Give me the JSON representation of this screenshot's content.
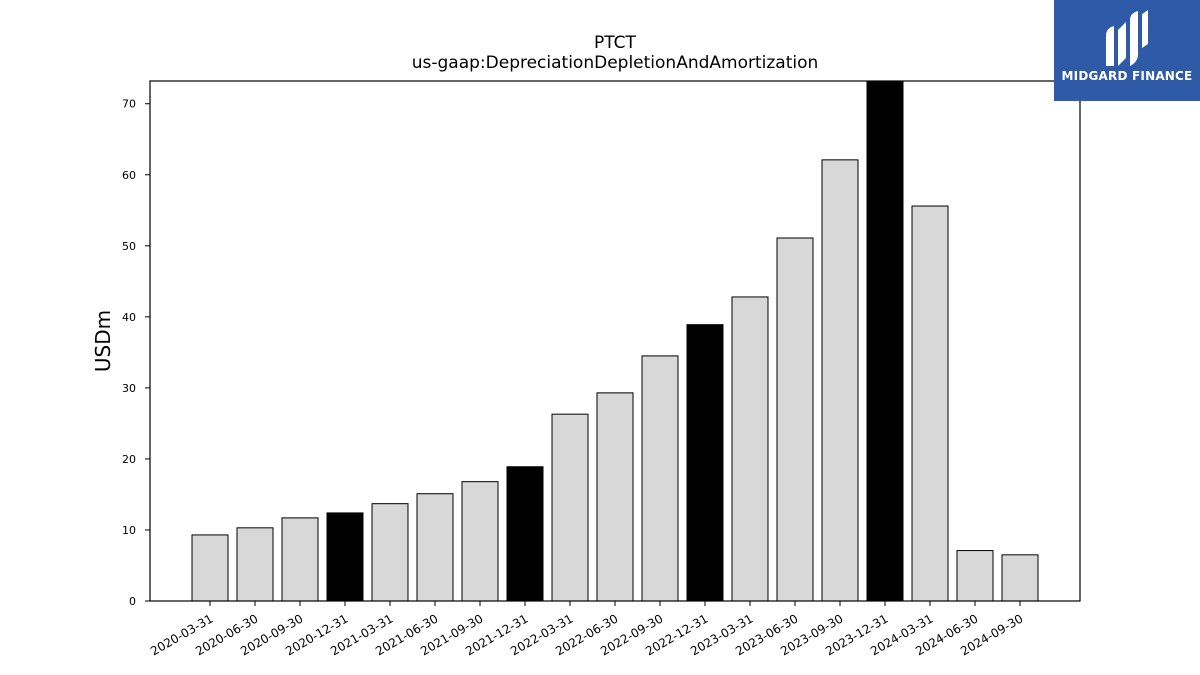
{
  "chart_data": {
    "type": "bar",
    "title": "PTCT",
    "subtitle": "us-gaap:DepreciationDepletionAndAmortization",
    "xlabel": "",
    "ylabel": "USDm",
    "ylim": [
      0,
      73.2
    ],
    "yticks": [
      0,
      10,
      20,
      30,
      40,
      50,
      60,
      70
    ],
    "grid": false,
    "categories": [
      "2020-03-31",
      "2020-06-30",
      "2020-09-30",
      "2020-12-31",
      "2021-03-31",
      "2021-06-30",
      "2021-09-30",
      "2021-12-31",
      "2022-03-31",
      "2022-06-30",
      "2022-09-30",
      "2022-12-31",
      "2023-03-31",
      "2023-06-30",
      "2023-09-30",
      "2023-12-31",
      "2024-03-31",
      "2024-06-30",
      "2024-09-30"
    ],
    "values": [
      9.3,
      10.3,
      11.7,
      12.4,
      13.7,
      15.1,
      16.8,
      18.9,
      26.3,
      29.3,
      34.5,
      38.9,
      42.8,
      51.1,
      62.1,
      73.2,
      55.6,
      7.1,
      6.5
    ],
    "highlighted": [
      "2020-12-31",
      "2021-12-31",
      "2022-12-31",
      "2023-12-31"
    ],
    "colors": {
      "bar": "#d8d8d8",
      "highlight": "#000000",
      "edge": "#000000"
    }
  },
  "logo": {
    "text": "MIDGARD FINANCE",
    "background": "#2f5aa8"
  }
}
